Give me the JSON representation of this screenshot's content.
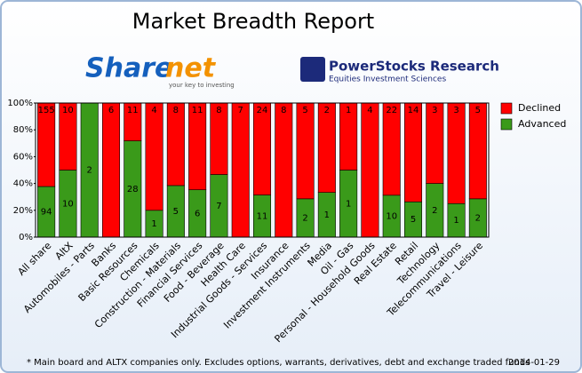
{
  "header": {
    "logo_left_a": "Share",
    "logo_left_b": "net",
    "logo_left_tagline": "your key to investing",
    "logo_right": "PowerStocks  Research",
    "logo_right_tagline": "Equities Investment Sciences"
  },
  "chart_data": {
    "type": "bar",
    "stacking": "percent",
    "title": "Market Breadth Report",
    "categories": [
      "All share",
      "AltX",
      "Automobiles - Parts",
      "Banks",
      "Basic Resources",
      "Chemicals",
      "Construction - Materials",
      "Financial Services",
      "Food - Beverage",
      "Health Care",
      "Industrial Goods - Services",
      "Insurance",
      "Investment Instruments",
      "Media",
      "Oil - Gas",
      "Personal - Household Goods",
      "Real Estate",
      "Retail",
      "Technology",
      "Telecommunications",
      "Travel - Leisure"
    ],
    "series": [
      {
        "name": "Advanced",
        "color": "#3a9a1a",
        "values": [
          94,
          10,
          2,
          0,
          28,
          1,
          5,
          6,
          7,
          0,
          11,
          0,
          2,
          1,
          1,
          0,
          10,
          5,
          2,
          1,
          2
        ]
      },
      {
        "name": "Declined",
        "color": "#ff0000",
        "values": [
          155,
          10,
          0,
          6,
          11,
          4,
          8,
          11,
          8,
          7,
          24,
          8,
          5,
          2,
          1,
          4,
          22,
          14,
          3,
          3,
          5
        ]
      }
    ],
    "ylim": [
      0,
      100
    ],
    "yticks": [
      {
        "value": 0,
        "label": "0%"
      },
      {
        "value": 20,
        "label": "20%"
      },
      {
        "value": 40,
        "label": "40%"
      },
      {
        "value": 60,
        "label": "60%"
      },
      {
        "value": 80,
        "label": "80%"
      },
      {
        "value": 100,
        "label": "100%"
      }
    ],
    "legend": "right"
  },
  "footer": {
    "note": "* Main board and ALTX companies only. Excludes options, warrants, derivatives, debt and exchange traded funds",
    "date": "2014-01-29"
  }
}
